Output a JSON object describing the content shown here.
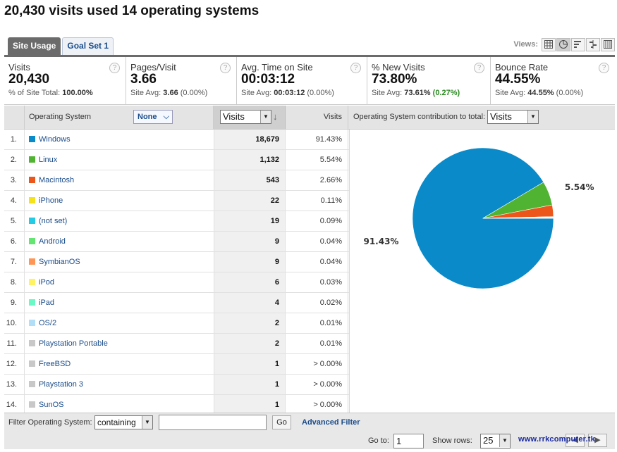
{
  "page_title": "20,430 visits used 14 operating systems",
  "tabs": [
    {
      "label": "Site Usage",
      "active": true
    },
    {
      "label": "Goal Set 1",
      "active": false
    }
  ],
  "views_label": "Views:",
  "metrics": [
    {
      "label": "Visits",
      "value": "20,430",
      "sub_prefix": "% of Site Total: ",
      "sub_value": "100.00%",
      "sub_delta": ""
    },
    {
      "label": "Pages/Visit",
      "value": "3.66",
      "sub_prefix": "Site Avg: ",
      "sub_value": "3.66",
      "sub_delta": " (0.00%)"
    },
    {
      "label": "Avg. Time on Site",
      "value": "00:03:12",
      "sub_prefix": "Site Avg: ",
      "sub_value": "00:03:12",
      "sub_delta": " (0.00%)"
    },
    {
      "label": "% New Visits",
      "value": "73.80%",
      "sub_prefix": "Site Avg: ",
      "sub_value": "73.61%",
      "sub_delta": " (0.27%)"
    },
    {
      "label": "Bounce Rate",
      "value": "44.55%",
      "sub_prefix": "Site Avg: ",
      "sub_value": "44.55%",
      "sub_delta": " (0.00%)"
    }
  ],
  "table": {
    "col_dimension": "Operating System",
    "secondary_dimension": "None",
    "metric_select": "Visits",
    "col_metric": "Visits",
    "chart_caption": "Operating System contribution to total:",
    "chart_select": "Visits",
    "rows": [
      {
        "num": "1.",
        "name": "Windows",
        "visits": "18,679",
        "pct": "91.43%",
        "color": "#0a8ac8"
      },
      {
        "num": "2.",
        "name": "Linux",
        "visits": "1,132",
        "pct": "5.54%",
        "color": "#50b432"
      },
      {
        "num": "3.",
        "name": "Macintosh",
        "visits": "543",
        "pct": "2.66%",
        "color": "#ec561b"
      },
      {
        "num": "4.",
        "name": "iPhone",
        "visits": "22",
        "pct": "0.11%",
        "color": "#f5e21a"
      },
      {
        "num": "5.",
        "name": "(not set)",
        "visits": "19",
        "pct": "0.09%",
        "color": "#24cbe5"
      },
      {
        "num": "6.",
        "name": "Android",
        "visits": "9",
        "pct": "0.04%",
        "color": "#64e572"
      },
      {
        "num": "7.",
        "name": "SymbianOS",
        "visits": "9",
        "pct": "0.04%",
        "color": "#ff9655"
      },
      {
        "num": "8.",
        "name": "iPod",
        "visits": "6",
        "pct": "0.03%",
        "color": "#fff263"
      },
      {
        "num": "9.",
        "name": "iPad",
        "visits": "4",
        "pct": "0.02%",
        "color": "#6af9c4"
      },
      {
        "num": "10.",
        "name": "OS/2",
        "visits": "2",
        "pct": "0.01%",
        "color": "#b2def7"
      },
      {
        "num": "11.",
        "name": "Playstation Portable",
        "visits": "2",
        "pct": "0.01%",
        "color": "#c8c8c8"
      },
      {
        "num": "12.",
        "name": "FreeBSD",
        "visits": "1",
        "pct": "> 0.00%",
        "color": "#c8c8c8"
      },
      {
        "num": "13.",
        "name": "Playstation 3",
        "visits": "1",
        "pct": "> 0.00%",
        "color": "#c8c8c8"
      },
      {
        "num": "14.",
        "name": "SunOS",
        "visits": "1",
        "pct": "> 0.00%",
        "color": "#c8c8c8"
      }
    ]
  },
  "chart_data": {
    "type": "pie",
    "categories": [
      "Windows",
      "Linux",
      "Macintosh",
      "iPhone",
      "(not set)",
      "Android",
      "SymbianOS",
      "iPod",
      "iPad",
      "OS/2",
      "Playstation Portable",
      "FreeBSD",
      "Playstation 3",
      "SunOS"
    ],
    "values": [
      91.43,
      5.54,
      2.66,
      0.11,
      0.09,
      0.04,
      0.04,
      0.03,
      0.02,
      0.01,
      0.01,
      0.005,
      0.005,
      0.005
    ],
    "colors": [
      "#0a8ac8",
      "#50b432",
      "#ec561b",
      "#f5e21a",
      "#24cbe5",
      "#64e572",
      "#ff9655",
      "#fff263",
      "#6af9c4",
      "#b2def7",
      "#c8c8c8",
      "#c8c8c8",
      "#c8c8c8",
      "#c8c8c8"
    ],
    "data_labels": [
      {
        "category": "Windows",
        "text": "91.43%"
      },
      {
        "category": "Linux",
        "text": "5.54%"
      }
    ]
  },
  "filter": {
    "label": "Filter Operating System:",
    "mode": "containing",
    "value": "",
    "go_label": "Go",
    "advanced_label": "Advanced Filter"
  },
  "pagination": {
    "goto_label": "Go to:",
    "goto_value": "1",
    "show_rows_label": "Show rows:",
    "show_rows_value": "25",
    "watermark": "www.rrkcomputer.tk"
  }
}
